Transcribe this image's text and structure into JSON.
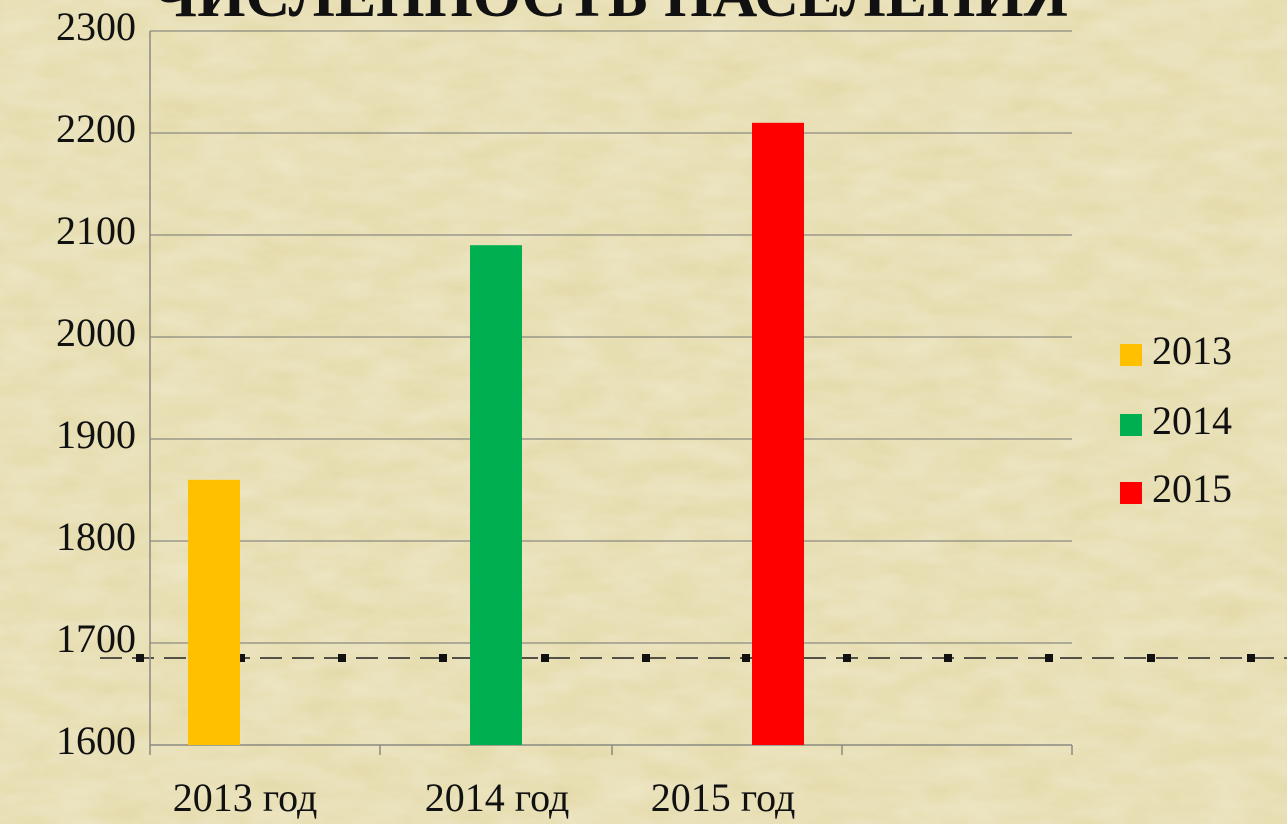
{
  "chart_data": {
    "type": "bar",
    "title": "ЧИСЛЕННОСТЬ НАСЕЛЕНИЯ",
    "categories": [
      "2013 год",
      "2014 год",
      "2015 год"
    ],
    "values": [
      1860,
      2090,
      2210
    ],
    "colors": [
      "#ffc000",
      "#00b050",
      "#ff0000"
    ],
    "legend": [
      "2013",
      "2014",
      "2015"
    ],
    "ylim": [
      1600,
      2300
    ],
    "yticks": [
      1600,
      1700,
      1800,
      1900,
      2000,
      2100,
      2200,
      2300
    ],
    "grid": true
  }
}
